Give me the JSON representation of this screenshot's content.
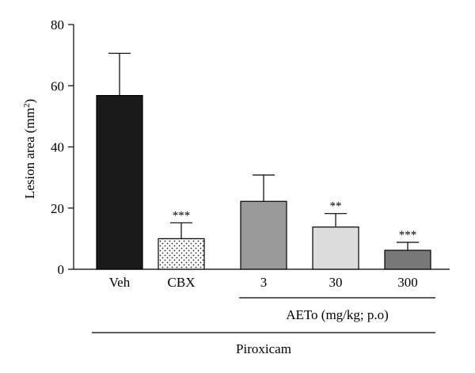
{
  "chart_data": {
    "type": "bar",
    "ylabel": "Lesion area (mm",
    "ylabel_superscript": "2",
    "ylabel_close": ")",
    "ylim": [
      0,
      80
    ],
    "yticks": [
      "80",
      "60",
      "40",
      "20",
      "0"
    ],
    "categories": [
      "Veh",
      "CBX",
      "3",
      "30",
      "300"
    ],
    "values": [
      56.8,
      10.0,
      22.2,
      13.8,
      6.2
    ],
    "errors": [
      13.8,
      5.2,
      8.6,
      4.4,
      2.6
    ],
    "significance": [
      "",
      "***",
      "",
      "**",
      "***"
    ],
    "fills": [
      "#1a1a1a",
      "dots",
      "#9a9a9a",
      "#dcdcdc",
      "#787878"
    ],
    "group_label": "AETo (mg/kg; p.o)",
    "treatment_label": "Piroxicam"
  }
}
